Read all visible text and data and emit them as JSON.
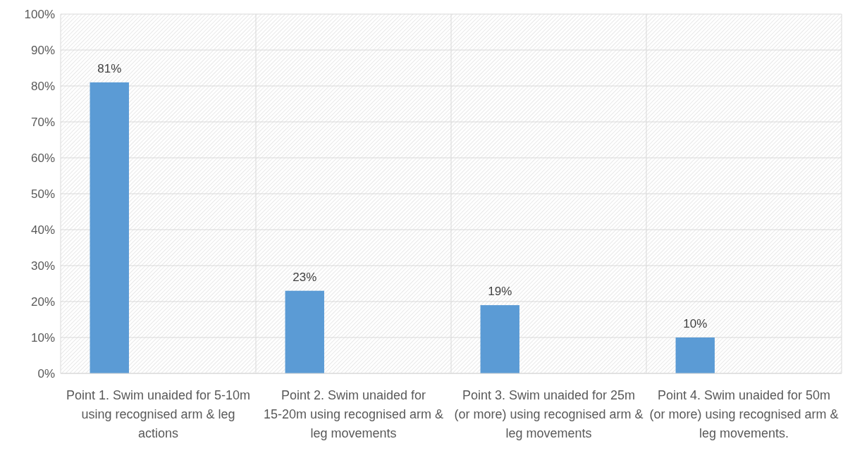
{
  "chart_data": {
    "type": "bar",
    "categories": [
      "Point 1.  Swim unaided for 5-10m using recognised arm & leg actions",
      "Point 2.  Swim unaided for 15-20m using recognised arm & leg movements",
      "Point 3.  Swim unaided for 25m (or more) using recognised arm & leg movements",
      "Point 4.  Swim unaided for 50m (or more) using recognised arm & leg movements."
    ],
    "values": [
      81,
      23,
      19,
      10
    ],
    "color": "#5b9bd5",
    "value_labels": [
      "81%",
      "23%",
      "19%",
      "10%"
    ],
    "ylim": [
      0,
      100
    ],
    "yticks": [
      {
        "value": 0,
        "label": "0%"
      },
      {
        "value": 10,
        "label": "10%"
      },
      {
        "value": 20,
        "label": "20%"
      },
      {
        "value": 30,
        "label": "30%"
      },
      {
        "value": 40,
        "label": "40%"
      },
      {
        "value": 50,
        "label": "50%"
      },
      {
        "value": 60,
        "label": "60%"
      },
      {
        "value": 70,
        "label": "70%"
      },
      {
        "value": 80,
        "label": "80%"
      },
      {
        "value": 90,
        "label": "90%"
      },
      {
        "value": 100,
        "label": "100%"
      }
    ],
    "grid": true
  }
}
